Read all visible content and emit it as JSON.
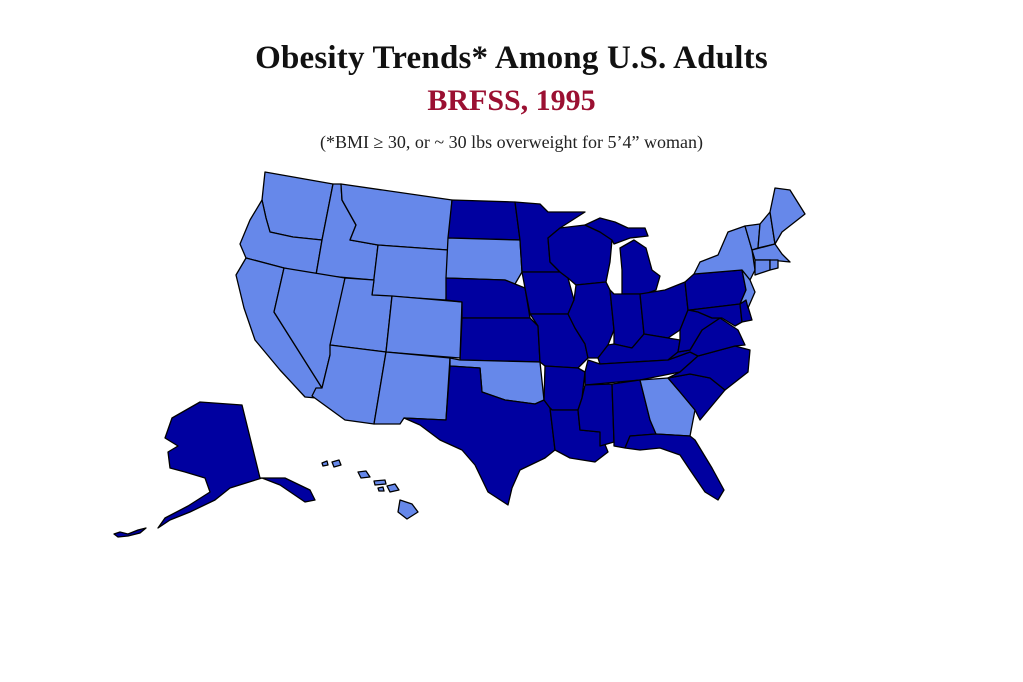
{
  "header": {
    "title": "Obesity Trends* Among U.S. Adults",
    "subtitle": "BRFSS, 1995",
    "footnote": "(*BMI ≥ 30, or ~ 30 lbs overweight for 5’4” woman)"
  },
  "colors": {
    "subtitle": "#9b1032",
    "category_light": "#6688ea",
    "category_dark": "#0000a0"
  },
  "map_data": {
    "region": "United States",
    "categories": [
      "light",
      "dark"
    ],
    "states": {
      "WA": "light",
      "OR": "light",
      "CA": "light",
      "ID": "light",
      "NV": "light",
      "MT": "light",
      "WY": "light",
      "UT": "light",
      "AZ": "light",
      "CO": "light",
      "NM": "light",
      "SD": "light",
      "OK": "light",
      "GA": "light",
      "HI": "light",
      "ME": "light",
      "NH": "light",
      "VT": "light",
      "NY": "light",
      "MA": "light",
      "CT": "light",
      "RI": "light",
      "NJ": "light",
      "ND": "dark",
      "MN": "dark",
      "NE": "dark",
      "KS": "dark",
      "TX": "dark",
      "IA": "dark",
      "MO": "dark",
      "AR": "dark",
      "LA": "dark",
      "WI": "dark",
      "IL": "dark",
      "MI": "dark",
      "IN": "dark",
      "OH": "dark",
      "KY": "dark",
      "TN": "dark",
      "MS": "dark",
      "AL": "dark",
      "FL": "dark",
      "SC": "dark",
      "NC": "dark",
      "VA": "dark",
      "WV": "dark",
      "PA": "dark",
      "MD": "dark",
      "DE": "dark",
      "AK": "dark"
    }
  }
}
